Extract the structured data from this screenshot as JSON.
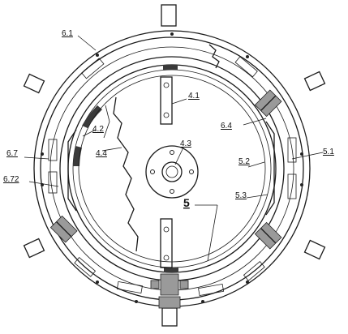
{
  "labels": {
    "l_6_1": "6.1",
    "l_4_1": "4.1",
    "l_4_2": "4.2",
    "l_4_3": "4.3",
    "l_4_4": "4.4",
    "l_6_4": "6.4",
    "l_5_1": "5.1",
    "l_5_2": "5.2",
    "l_5_3": "5.3",
    "l_6_7": "6.7",
    "l_6_72": "6.72",
    "l_5": "5"
  }
}
